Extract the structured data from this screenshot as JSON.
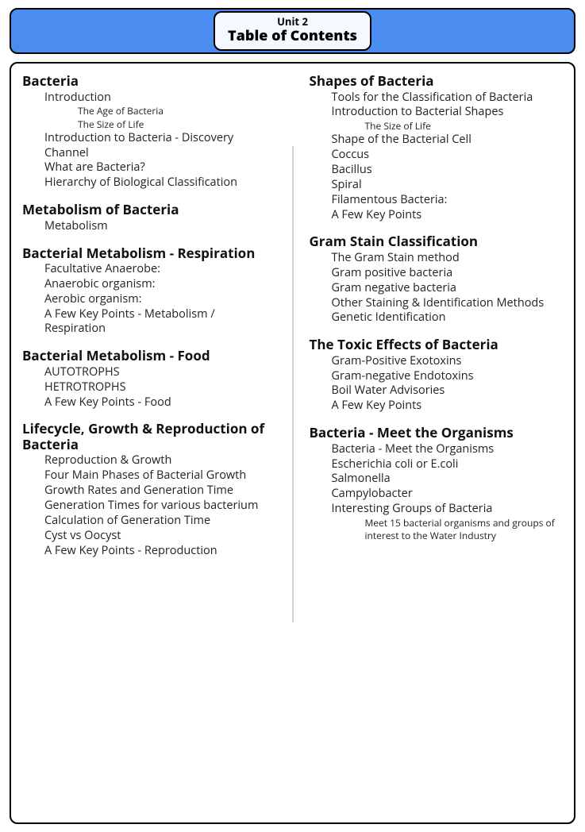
{
  "header": {
    "unit": "Unit 2",
    "title": "Table of Contents"
  },
  "colors": {
    "headerBar": "#4a8cf0",
    "headerPillBg": "#f5f9ff",
    "border": "#000000",
    "divider": "#d0d0d0",
    "text": "#111111"
  },
  "left": [
    {
      "title": "Bacteria",
      "items": [
        {
          "text": "Introduction",
          "children": [
            {
              "text": "The Age of Bacteria"
            },
            {
              "text": "The Size of Life"
            }
          ]
        },
        {
          "text": "Introduction to Bacteria - Discovery Channel"
        },
        {
          "text": "What are Bacteria?"
        },
        {
          "text": "Hierarchy of Biological Classification"
        }
      ]
    },
    {
      "title": "Metabolism of Bacteria",
      "items": [
        {
          "text": "Metabolism"
        }
      ]
    },
    {
      "title": "Bacterial Metabolism - Respiration",
      "items": [
        {
          "text": "Facultative Anaerobe:"
        },
        {
          "text": "Anaerobic organism:"
        },
        {
          "text": "Aerobic organism:"
        },
        {
          "text": "A Few Key Points - Metabolism / Respiration"
        }
      ]
    },
    {
      "title": "Bacterial Metabolism - Food",
      "items": [
        {
          "text": "AUTOTROPHS"
        },
        {
          "text": "HETROTROPHS"
        },
        {
          "text": "A Few Key Points - Food"
        }
      ]
    },
    {
      "title": "Lifecycle, Growth & Reproduction of Bacteria",
      "items": [
        {
          "text": "Reproduction & Growth"
        },
        {
          "text": "Four Main Phases of Bacterial Growth"
        },
        {
          "text": "Growth Rates and Generation Time"
        },
        {
          "text": "Generation Times for various bacterium"
        },
        {
          "text": "Calculation of Generation Time"
        },
        {
          "text": "Cyst vs Oocyst"
        },
        {
          "text": "A Few Key Points - Reproduction"
        }
      ]
    }
  ],
  "right": [
    {
      "title": "Shapes of Bacteria",
      "items": [
        {
          "text": "Tools for the Classification of Bacteria"
        },
        {
          "text": "Introduction to Bacterial Shapes",
          "children": [
            {
              "text": "The Size of Life"
            }
          ]
        },
        {
          "text": "Shape of the Bacterial Cell"
        },
        {
          "text": "Coccus"
        },
        {
          "text": "Bacillus"
        },
        {
          "text": "Spiral"
        },
        {
          "text": "Filamentous Bacteria:"
        },
        {
          "text": "A Few Key Points"
        }
      ]
    },
    {
      "title": "Gram Stain Classification",
      "items": [
        {
          "text": "The Gram Stain method"
        },
        {
          "text": "Gram positive bacteria"
        },
        {
          "text": "Gram negative bacteria"
        },
        {
          "text": "Other Staining & Identification Methods"
        },
        {
          "text": "Genetic Identification"
        }
      ]
    },
    {
      "title": "The Toxic Effects of Bacteria",
      "items": [
        {
          "text": "Gram-Positive Exotoxins"
        },
        {
          "text": "Gram-negative Endotoxins"
        },
        {
          "text": "Boil Water Advisories"
        },
        {
          "text": "A Few Key Points"
        }
      ]
    },
    {
      "title": "Bacteria - Meet the Organisms",
      "items": [
        {
          "text": "Bacteria - Meet the Organisms"
        },
        {
          "text": "Escherichia coli   or   E.coli"
        },
        {
          "text": "Salmonella"
        },
        {
          "text": "Campylobacter"
        },
        {
          "text": "Interesting Groups of Bacteria",
          "children": [
            {
              "text": "Meet 15 bacterial organisms and groups of interest to the Water Industry"
            }
          ]
        }
      ]
    }
  ]
}
